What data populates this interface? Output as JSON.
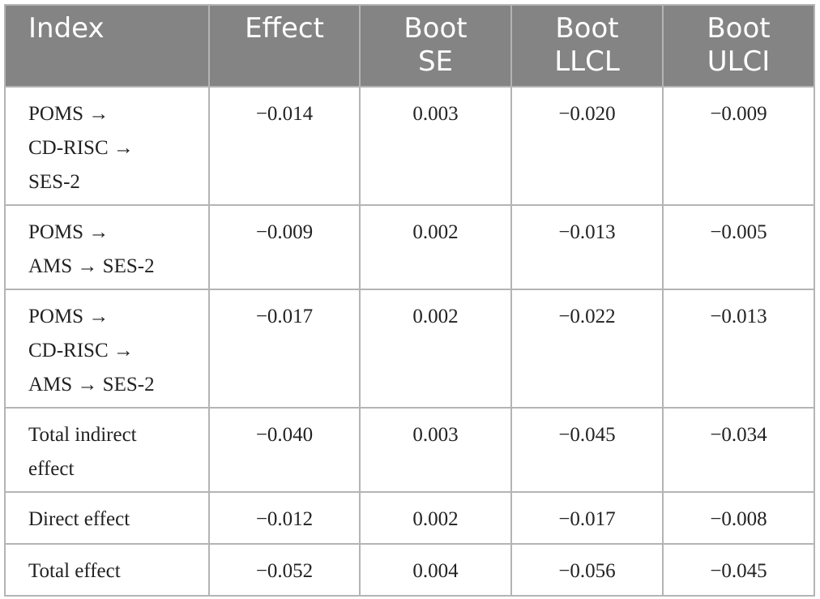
{
  "table": {
    "headers": {
      "index": "Index",
      "effect": "Effect",
      "boot_se_line1": "Boot",
      "boot_se_line2": "SE",
      "boot_llcl_line1": "Boot",
      "boot_llcl_line2": "LLCL",
      "boot_ulci_line1": "Boot",
      "boot_ulci_line2": "ULCI"
    },
    "rows": [
      {
        "index_lines": [
          "POMS →",
          "CD-RISC →",
          "SES-2"
        ],
        "effect": "−0.014",
        "boot_se": "0.003",
        "boot_llcl": "−0.020",
        "boot_ulci": "−0.009"
      },
      {
        "index_lines": [
          "POMS →",
          "AMS → SES-2"
        ],
        "effect": "−0.009",
        "boot_se": "0.002",
        "boot_llcl": "−0.013",
        "boot_ulci": "−0.005"
      },
      {
        "index_lines": [
          "POMS →",
          "CD-RISC →",
          "AMS → SES-2"
        ],
        "effect": "−0.017",
        "boot_se": "0.002",
        "boot_llcl": "−0.022",
        "boot_ulci": "−0.013"
      },
      {
        "index_lines": [
          "Total indirect",
          "effect"
        ],
        "effect": "−0.040",
        "boot_se": "0.003",
        "boot_llcl": "−0.045",
        "boot_ulci": "−0.034"
      },
      {
        "index_lines": [
          "Direct effect"
        ],
        "effect": "−0.012",
        "boot_se": "0.002",
        "boot_llcl": "−0.017",
        "boot_ulci": "−0.008"
      },
      {
        "index_lines": [
          "Total effect"
        ],
        "effect": "−0.052",
        "boot_se": "0.004",
        "boot_llcl": "−0.056",
        "boot_ulci": "−0.045"
      }
    ]
  }
}
